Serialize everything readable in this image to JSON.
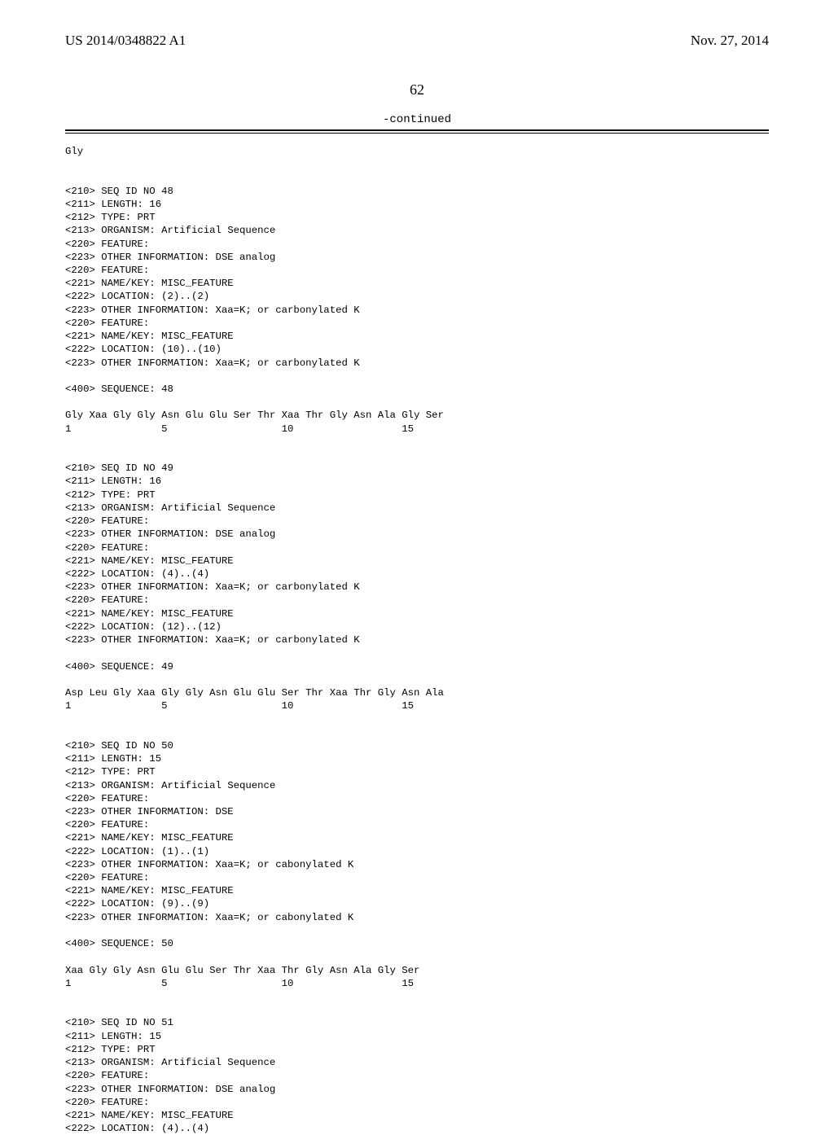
{
  "header": {
    "pub_number": "US 2014/0348822 A1",
    "pub_date": "Nov. 27, 2014"
  },
  "page_number": "62",
  "continued_label": "-continued",
  "body_text": "Gly\n\n\n<210> SEQ ID NO 48\n<211> LENGTH: 16\n<212> TYPE: PRT\n<213> ORGANISM: Artificial Sequence\n<220> FEATURE:\n<223> OTHER INFORMATION: DSE analog\n<220> FEATURE:\n<221> NAME/KEY: MISC_FEATURE\n<222> LOCATION: (2)..(2)\n<223> OTHER INFORMATION: Xaa=K; or carbonylated K\n<220> FEATURE:\n<221> NAME/KEY: MISC_FEATURE\n<222> LOCATION: (10)..(10)\n<223> OTHER INFORMATION: Xaa=K; or carbonylated K\n\n<400> SEQUENCE: 48\n\nGly Xaa Gly Gly Asn Glu Glu Ser Thr Xaa Thr Gly Asn Ala Gly Ser\n1               5                   10                  15\n\n\n<210> SEQ ID NO 49\n<211> LENGTH: 16\n<212> TYPE: PRT\n<213> ORGANISM: Artificial Sequence\n<220> FEATURE:\n<223> OTHER INFORMATION: DSE analog\n<220> FEATURE:\n<221> NAME/KEY: MISC_FEATURE\n<222> LOCATION: (4)..(4)\n<223> OTHER INFORMATION: Xaa=K; or carbonylated K\n<220> FEATURE:\n<221> NAME/KEY: MISC_FEATURE\n<222> LOCATION: (12)..(12)\n<223> OTHER INFORMATION: Xaa=K; or carbonylated K\n\n<400> SEQUENCE: 49\n\nAsp Leu Gly Xaa Gly Gly Asn Glu Glu Ser Thr Xaa Thr Gly Asn Ala\n1               5                   10                  15\n\n\n<210> SEQ ID NO 50\n<211> LENGTH: 15\n<212> TYPE: PRT\n<213> ORGANISM: Artificial Sequence\n<220> FEATURE:\n<223> OTHER INFORMATION: DSE\n<220> FEATURE:\n<221> NAME/KEY: MISC_FEATURE\n<222> LOCATION: (1)..(1)\n<223> OTHER INFORMATION: Xaa=K; or cabonylated K\n<220> FEATURE:\n<221> NAME/KEY: MISC_FEATURE\n<222> LOCATION: (9)..(9)\n<223> OTHER INFORMATION: Xaa=K; or cabonylated K\n\n<400> SEQUENCE: 50\n\nXaa Gly Gly Asn Glu Glu Ser Thr Xaa Thr Gly Asn Ala Gly Ser\n1               5                   10                  15\n\n\n<210> SEQ ID NO 51\n<211> LENGTH: 15\n<212> TYPE: PRT\n<213> ORGANISM: Artificial Sequence\n<220> FEATURE:\n<223> OTHER INFORMATION: DSE analog\n<220> FEATURE:\n<221> NAME/KEY: MISC_FEATURE\n<222> LOCATION: (4)..(4)"
}
